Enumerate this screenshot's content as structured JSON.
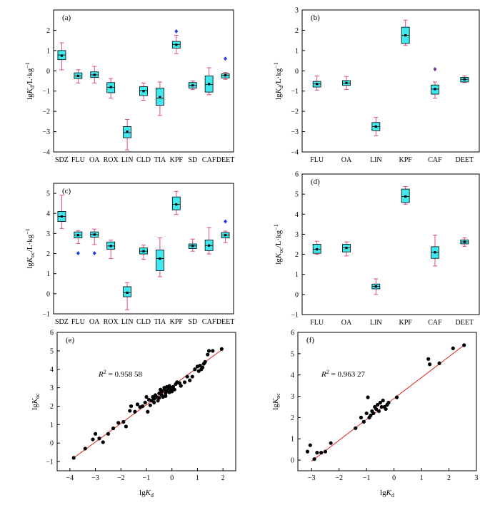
{
  "chart_data": [
    {
      "id": "a",
      "type": "box",
      "panel_label": "(a)",
      "ylabel": "lgKd/L·kg⁻¹",
      "ylabel_parts": {
        "pre": "lg",
        "sym": "K",
        "sub": "d",
        "post": "/L·kg",
        "sup": "−1"
      },
      "ylim": [
        -4,
        3
      ],
      "yticks": [
        -4,
        -3,
        -2,
        -1,
        0,
        1,
        2
      ],
      "colors": {
        "box": "#3ee8ec",
        "whisker": "#e0488a",
        "outlier": "#1f3fe6"
      },
      "boxes": [
        {
          "label": "SDZ",
          "min": 0.05,
          "q1": 0.55,
          "median": 0.78,
          "q3": 1.0,
          "max": 1.38,
          "mean": 0.75,
          "outliers": []
        },
        {
          "label": "FLU",
          "min": -0.6,
          "q1": -0.38,
          "median": -0.25,
          "q3": -0.1,
          "max": 0.05,
          "mean": -0.25,
          "outliers": []
        },
        {
          "label": "OA",
          "min": -0.6,
          "q1": -0.33,
          "median": -0.2,
          "q3": -0.05,
          "max": 0.22,
          "mean": -0.2,
          "outliers": []
        },
        {
          "label": "ROX",
          "min": -1.35,
          "q1": -1.08,
          "median": -0.82,
          "q3": -0.58,
          "max": -0.38,
          "mean": -0.8,
          "outliers": []
        },
        {
          "label": "LIN",
          "min": -3.9,
          "q1": -3.3,
          "median": -3.05,
          "q3": -2.75,
          "max": -2.4,
          "mean": -3.0,
          "outliers": []
        },
        {
          "label": "CLD",
          "min": -1.45,
          "q1": -1.22,
          "median": -0.97,
          "q3": -0.78,
          "max": -0.6,
          "mean": -1.0,
          "outliers": []
        },
        {
          "label": "TIA",
          "min": -2.2,
          "q1": -1.7,
          "median": -1.35,
          "q3": -0.85,
          "max": -0.55,
          "mean": -1.3,
          "outliers": []
        },
        {
          "label": "KPF",
          "min": 0.85,
          "q1": 1.12,
          "median": 1.3,
          "q3": 1.45,
          "max": 1.75,
          "mean": 1.28,
          "outliers": [
            1.95
          ]
        },
        {
          "label": "SD",
          "min": -0.92,
          "q1": -0.85,
          "median": -0.72,
          "q3": -0.58,
          "max": -0.5,
          "mean": -0.72,
          "outliers": []
        },
        {
          "label": "CAF",
          "min": -1.18,
          "q1": -1.05,
          "median": -0.68,
          "q3": -0.25,
          "max": 0.15,
          "mean": -0.65,
          "outliers": []
        },
        {
          "label": "DEET",
          "min": -0.42,
          "q1": -0.35,
          "median": -0.22,
          "q3": -0.15,
          "max": -0.08,
          "mean": -0.22,
          "outliers": [
            0.6
          ]
        }
      ]
    },
    {
      "id": "b",
      "type": "box",
      "panel_label": "(b)",
      "ylabel": "lgKd/L·kg⁻¹",
      "ylabel_parts": {
        "pre": "lg",
        "sym": "K",
        "sub": "d",
        "post": "/L·kg",
        "sup": "−1"
      },
      "ylim": [
        -4,
        3
      ],
      "yticks": [
        -4,
        -3,
        -2,
        -1,
        0,
        1,
        2,
        3
      ],
      "colors": {
        "box": "#3ee8ec",
        "whisker": "#e0488a",
        "outlier": "#7030a0"
      },
      "boxes": [
        {
          "label": "FLU",
          "min": -0.95,
          "q1": -0.8,
          "median": -0.65,
          "q3": -0.52,
          "max": -0.25,
          "mean": -0.65,
          "outliers": []
        },
        {
          "label": "OA",
          "min": -0.92,
          "q1": -0.72,
          "median": -0.6,
          "q3": -0.48,
          "max": -0.28,
          "mean": -0.6,
          "outliers": []
        },
        {
          "label": "LIN",
          "min": -3.2,
          "q1": -2.95,
          "median": -2.75,
          "q3": -2.55,
          "max": -2.3,
          "mean": -2.75,
          "outliers": []
        },
        {
          "label": "KPF",
          "min": 1.25,
          "q1": 1.35,
          "median": 1.75,
          "q3": 2.15,
          "max": 2.5,
          "mean": 1.75,
          "outliers": []
        },
        {
          "label": "CAF",
          "min": -1.35,
          "q1": -1.15,
          "median": -0.9,
          "q3": -0.7,
          "max": -0.55,
          "mean": -0.9,
          "outliers": [
            0.08
          ]
        },
        {
          "label": "DEET",
          "min": -0.58,
          "q1": -0.55,
          "median": -0.42,
          "q3": -0.32,
          "max": -0.25,
          "mean": -0.42,
          "outliers": []
        }
      ]
    },
    {
      "id": "c",
      "type": "box",
      "panel_label": "(c)",
      "ylabel": "lgKoc/L·kg⁻¹",
      "ylabel_parts": {
        "pre": "lg",
        "sym": "K",
        "sub": "oc",
        "post": "/L·kg",
        "sup": "−1"
      },
      "ylim": [
        -1,
        5.5
      ],
      "yticks": [
        -1,
        0,
        1,
        2,
        3,
        4,
        5
      ],
      "colors": {
        "box": "#3ee8ec",
        "whisker": "#e0488a",
        "outlier": "#1f3fe6"
      },
      "boxes": [
        {
          "label": "SDZ",
          "min": 3.25,
          "q1": 3.6,
          "median": 3.85,
          "q3": 4.1,
          "max": 4.9,
          "mean": 3.85,
          "outliers": []
        },
        {
          "label": "FLU",
          "min": 2.5,
          "q1": 2.78,
          "median": 2.92,
          "q3": 3.08,
          "max": 3.15,
          "mean": 2.92,
          "outliers": [
            2.02
          ]
        },
        {
          "label": "OA",
          "min": 2.45,
          "q1": 2.82,
          "median": 2.95,
          "q3": 3.08,
          "max": 3.22,
          "mean": 2.95,
          "outliers": [
            2.02
          ]
        },
        {
          "label": "ROX",
          "min": 1.75,
          "q1": 2.22,
          "median": 2.38,
          "q3": 2.58,
          "max": 2.68,
          "mean": 2.38,
          "outliers": []
        },
        {
          "label": "LIN",
          "min": -0.8,
          "q1": -0.15,
          "median": 0.05,
          "q3": 0.35,
          "max": 0.55,
          "mean": 0.05,
          "outliers": []
        },
        {
          "label": "CLD",
          "min": 1.72,
          "q1": 1.98,
          "median": 2.12,
          "q3": 2.28,
          "max": 2.42,
          "mean": 2.12,
          "outliers": []
        },
        {
          "label": "TIA",
          "min": 0.85,
          "q1": 1.15,
          "median": 1.75,
          "q3": 2.18,
          "max": 2.78,
          "mean": 1.75,
          "outliers": []
        },
        {
          "label": "KPF",
          "min": 3.95,
          "q1": 4.18,
          "median": 4.45,
          "q3": 4.82,
          "max": 5.1,
          "mean": 4.45,
          "outliers": []
        },
        {
          "label": "SD",
          "min": 2.12,
          "q1": 2.25,
          "median": 2.38,
          "q3": 2.48,
          "max": 2.72,
          "mean": 2.38,
          "outliers": []
        },
        {
          "label": "CAF",
          "min": 1.98,
          "q1": 2.15,
          "median": 2.4,
          "q3": 2.68,
          "max": 3.3,
          "mean": 2.4,
          "outliers": []
        },
        {
          "label": "DEET",
          "min": 2.55,
          "q1": 2.78,
          "median": 2.92,
          "q3": 3.05,
          "max": 3.12,
          "mean": 2.92,
          "outliers": [
            3.6
          ]
        }
      ]
    },
    {
      "id": "d",
      "type": "box",
      "panel_label": "(d)",
      "ylabel": "lgKoc/L·kg⁻¹",
      "ylabel_parts": {
        "pre": "lg",
        "sym": "K",
        "sub": "oc",
        "post": "/L·kg",
        "sup": "−1"
      },
      "ylim": [
        -1,
        6
      ],
      "yticks": [
        -1,
        0,
        1,
        2,
        3,
        4,
        5,
        6
      ],
      "colors": {
        "box": "#3ee8ec",
        "whisker": "#e0488a",
        "outlier": "#1f3fe6"
      },
      "boxes": [
        {
          "label": "FLU",
          "min": 2.0,
          "q1": 2.05,
          "median": 2.25,
          "q3": 2.5,
          "max": 2.65,
          "mean": 2.25,
          "outliers": []
        },
        {
          "label": "OA",
          "min": 1.92,
          "q1": 2.12,
          "median": 2.32,
          "q3": 2.5,
          "max": 2.62,
          "mean": 2.32,
          "outliers": []
        },
        {
          "label": "LIN",
          "min": 0.0,
          "q1": 0.28,
          "median": 0.4,
          "q3": 0.52,
          "max": 0.78,
          "mean": 0.4,
          "outliers": []
        },
        {
          "label": "KPF",
          "min": 4.5,
          "q1": 4.58,
          "median": 4.88,
          "q3": 5.25,
          "max": 5.38,
          "mean": 4.88,
          "outliers": []
        },
        {
          "label": "CAF",
          "min": 1.42,
          "q1": 1.8,
          "median": 2.1,
          "q3": 2.38,
          "max": 2.95,
          "mean": 2.1,
          "outliers": []
        },
        {
          "label": "DEET",
          "min": 2.4,
          "q1": 2.52,
          "median": 2.62,
          "q3": 2.72,
          "max": 2.82,
          "mean": 2.62,
          "outliers": []
        }
      ]
    },
    {
      "id": "e",
      "type": "scatter",
      "panel_label": "(e)",
      "xlabel": "lgKd",
      "ylabel": "lgKoc",
      "xlabel_parts": {
        "pre": "lg",
        "sym": "K",
        "sub": "d"
      },
      "ylabel_parts": {
        "pre": "lg",
        "sym": "K",
        "sub": "oc"
      },
      "xlim": [
        -4.5,
        2.5
      ],
      "ylim": [
        -1.5,
        6
      ],
      "xticks": [
        -4,
        -3,
        -2,
        -1,
        0,
        1,
        2
      ],
      "yticks": [
        -1,
        0,
        1,
        2,
        3,
        4,
        5,
        6
      ],
      "annotation": {
        "sym": "R",
        "sup": "2",
        "text": " = 0.958 58"
      },
      "fit": {
        "x": [
          -3.85,
          2.0
        ],
        "y": [
          -0.8,
          5.1
        ]
      },
      "colors": {
        "point": "#000000",
        "line": "#e02020"
      },
      "points": [
        [
          -3.85,
          -0.8
        ],
        [
          -3.4,
          -0.3
        ],
        [
          -3.1,
          0.2
        ],
        [
          -3.0,
          0.5
        ],
        [
          -2.85,
          0.25
        ],
        [
          -2.7,
          0.05
        ],
        [
          -2.5,
          0.5
        ],
        [
          -2.3,
          0.8
        ],
        [
          -2.1,
          1.1
        ],
        [
          -1.9,
          1.15
        ],
        [
          -1.8,
          0.9
        ],
        [
          -1.65,
          1.75
        ],
        [
          -1.6,
          2.0
        ],
        [
          -1.45,
          1.7
        ],
        [
          -1.35,
          2.1
        ],
        [
          -1.25,
          1.95
        ],
        [
          -1.15,
          2.0
        ],
        [
          -1.05,
          2.2
        ],
        [
          -1.0,
          2.5
        ],
        [
          -0.95,
          1.7
        ],
        [
          -0.9,
          2.35
        ],
        [
          -0.85,
          2.05
        ],
        [
          -0.8,
          2.3
        ],
        [
          -0.75,
          2.5
        ],
        [
          -0.7,
          2.2
        ],
        [
          -0.7,
          2.4
        ],
        [
          -0.65,
          2.6
        ],
        [
          -0.6,
          2.5
        ],
        [
          -0.55,
          2.3
        ],
        [
          -0.5,
          2.7
        ],
        [
          -0.5,
          2.45
        ],
        [
          -0.45,
          2.9
        ],
        [
          -0.4,
          2.6
        ],
        [
          -0.4,
          2.8
        ],
        [
          -0.35,
          2.5
        ],
        [
          -0.3,
          2.9
        ],
        [
          -0.3,
          3.0
        ],
        [
          -0.25,
          2.7
        ],
        [
          -0.25,
          2.55
        ],
        [
          -0.2,
          2.8
        ],
        [
          -0.2,
          3.05
        ],
        [
          -0.15,
          2.95
        ],
        [
          -0.1,
          2.75
        ],
        [
          -0.1,
          3.1
        ],
        [
          -0.05,
          2.9
        ],
        [
          0.0,
          3.0
        ],
        [
          0.0,
          2.8
        ],
        [
          0.05,
          3.05
        ],
        [
          0.1,
          2.9
        ],
        [
          0.15,
          3.2
        ],
        [
          0.2,
          3.3
        ],
        [
          0.3,
          3.25
        ],
        [
          0.35,
          3.1
        ],
        [
          0.5,
          3.3
        ],
        [
          0.6,
          3.6
        ],
        [
          0.7,
          3.4
        ],
        [
          0.8,
          3.6
        ],
        [
          0.9,
          4.0
        ],
        [
          1.0,
          4.15
        ],
        [
          1.05,
          3.9
        ],
        [
          1.1,
          4.2
        ],
        [
          1.15,
          4.0
        ],
        [
          1.2,
          4.1
        ],
        [
          1.25,
          4.3
        ],
        [
          1.3,
          4.4
        ],
        [
          1.4,
          4.8
        ],
        [
          1.45,
          5.0
        ],
        [
          1.6,
          5.0
        ],
        [
          1.95,
          5.1
        ]
      ]
    },
    {
      "id": "f",
      "type": "scatter",
      "panel_label": "(f)",
      "xlabel": "lgKd",
      "ylabel": "lgKoc",
      "xlabel_parts": {
        "pre": "lg",
        "sym": "K",
        "sub": "d"
      },
      "ylabel_parts": {
        "pre": "lg",
        "sym": "K",
        "sub": "oc"
      },
      "xlim": [
        -3.5,
        3.0
      ],
      "ylim": [
        -0.5,
        6
      ],
      "xticks": [
        -3,
        -2,
        -1,
        0,
        1,
        2,
        3
      ],
      "yticks": [
        0,
        1,
        2,
        3,
        4,
        5,
        6
      ],
      "annotation": {
        "sym": "R",
        "sup": "2",
        "text": " = 0.963 27"
      },
      "fit": {
        "x": [
          -3.0,
          2.55
        ],
        "y": [
          -0.05,
          5.4
        ]
      },
      "colors": {
        "point": "#000000",
        "line": "#e02020"
      },
      "points": [
        [
          -3.15,
          0.4
        ],
        [
          -3.05,
          0.7
        ],
        [
          -2.9,
          0.05
        ],
        [
          -2.8,
          0.35
        ],
        [
          -2.65,
          0.35
        ],
        [
          -2.5,
          0.4
        ],
        [
          -2.3,
          0.8
        ],
        [
          -1.4,
          1.5
        ],
        [
          -1.2,
          2.0
        ],
        [
          -1.1,
          1.8
        ],
        [
          -1.0,
          2.2
        ],
        [
          -0.95,
          2.95
        ],
        [
          -0.9,
          2.0
        ],
        [
          -0.85,
          2.1
        ],
        [
          -0.8,
          2.3
        ],
        [
          -0.75,
          2.2
        ],
        [
          -0.7,
          2.5
        ],
        [
          -0.65,
          2.4
        ],
        [
          -0.6,
          2.6
        ],
        [
          -0.55,
          2.3
        ],
        [
          -0.5,
          2.7
        ],
        [
          -0.45,
          2.5
        ],
        [
          -0.4,
          2.8
        ],
        [
          -0.35,
          2.5
        ],
        [
          -0.3,
          2.4
        ],
        [
          -0.25,
          2.6
        ],
        [
          -0.2,
          2.7
        ],
        [
          0.1,
          2.95
        ],
        [
          1.25,
          4.75
        ],
        [
          1.3,
          4.5
        ],
        [
          1.65,
          4.55
        ],
        [
          2.15,
          5.25
        ],
        [
          2.55,
          5.4
        ]
      ]
    }
  ]
}
